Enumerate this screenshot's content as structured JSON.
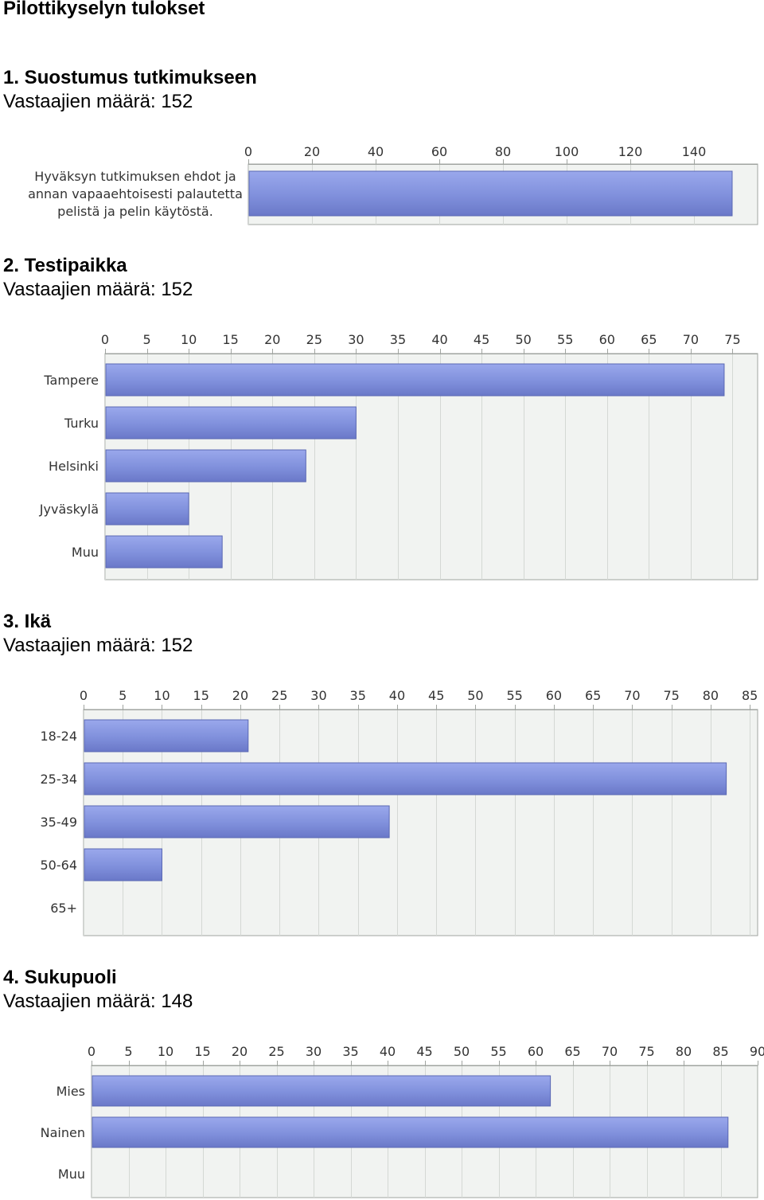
{
  "page_title": "Pilottikyselyn tulokset",
  "colors": {
    "bar": "#8090dc",
    "bar_border": "#5a68b4",
    "plot_bg": "#f1f3f1",
    "grid": "#d4d8d4",
    "axis": "#a0a4a0"
  },
  "questions": [
    {
      "title": "1. Suostumus tutkimukseen",
      "count": "Vastaajien määrä: 152",
      "chart_data": {
        "type": "bar",
        "orientation": "horizontal",
        "categories": [
          "Hyväksyn tutkimuksen ehdot ja annan vapaaehtoisesti palautetta pelistä ja pelin käytöstä."
        ],
        "category_lines": [
          [
            "Hyväksyn tutkimuksen ehdot ja",
            "annan vapaaehtoisesti palautetta",
            "pelistä ja pelin käytöstä."
          ]
        ],
        "values": [
          152
        ],
        "xlim": [
          0,
          160
        ],
        "xticks": [
          0,
          20,
          40,
          60,
          80,
          100,
          120,
          140
        ],
        "grid": true,
        "title": "",
        "xlabel": "",
        "ylabel": ""
      }
    },
    {
      "title": "2. Testipaikka",
      "count": "Vastaajien määrä: 152",
      "chart_data": {
        "type": "bar",
        "orientation": "horizontal",
        "categories": [
          "Tampere",
          "Turku",
          "Helsinki",
          "Jyväskylä",
          "Muu"
        ],
        "values": [
          74,
          30,
          24,
          10,
          14
        ],
        "xlim": [
          0,
          78
        ],
        "xticks": [
          0,
          5,
          10,
          15,
          20,
          25,
          30,
          35,
          40,
          45,
          50,
          55,
          60,
          65,
          70,
          75
        ],
        "grid": true,
        "title": "",
        "xlabel": "",
        "ylabel": ""
      }
    },
    {
      "title": "3. Ikä",
      "count": "Vastaajien määrä: 152",
      "chart_data": {
        "type": "bar",
        "orientation": "horizontal",
        "categories": [
          "18-24",
          "25-34",
          "35-49",
          "50-64",
          "65+"
        ],
        "values": [
          21,
          82,
          39,
          10,
          0
        ],
        "xlim": [
          0,
          86
        ],
        "xticks": [
          0,
          5,
          10,
          15,
          20,
          25,
          30,
          35,
          40,
          45,
          50,
          55,
          60,
          65,
          70,
          75,
          80,
          85
        ],
        "grid": true,
        "title": "",
        "xlabel": "",
        "ylabel": ""
      }
    },
    {
      "title": "4. Sukupuoli",
      "count": "Vastaajien määrä: 148",
      "chart_data": {
        "type": "bar",
        "orientation": "horizontal",
        "categories": [
          "Mies",
          "Nainen",
          "Muu"
        ],
        "values": [
          62,
          86,
          0
        ],
        "xlim": [
          0,
          90
        ],
        "xticks": [
          0,
          5,
          10,
          15,
          20,
          25,
          30,
          35,
          40,
          45,
          50,
          55,
          60,
          65,
          70,
          75,
          80,
          85,
          90
        ],
        "grid": true,
        "title": "",
        "xlabel": "",
        "ylabel": ""
      }
    }
  ]
}
